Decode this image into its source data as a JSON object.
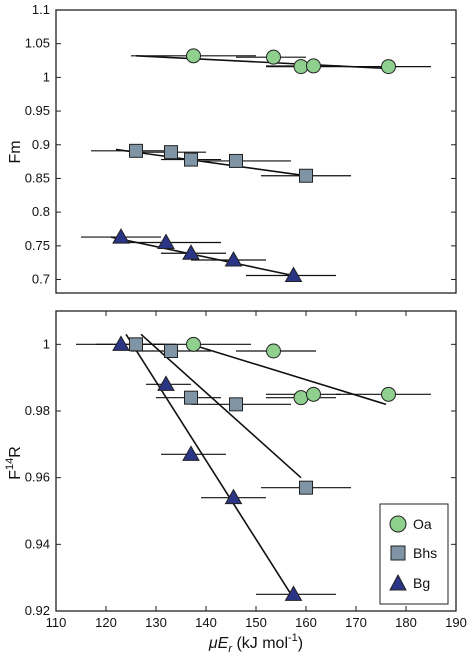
{
  "chart_data": [
    {
      "type": "scatter",
      "panel": "top",
      "ylabel": "Fm",
      "xlim": [
        110,
        190
      ],
      "ylim": [
        0.68,
        1.1
      ],
      "yticks": [
        "0.7",
        "0.75",
        "0.8",
        "0.85",
        "0.9",
        "0.95",
        "1",
        "1.05",
        "1.1"
      ],
      "grid": false,
      "series": [
        {
          "key": "Oa",
          "marker": "circle",
          "color": "#8fd08f",
          "points": [
            {
              "x": 137.5,
              "y": 1.032,
              "xerr_lo": 125,
              "xerr_hi": 150
            },
            {
              "x": 153.5,
              "y": 1.03,
              "xerr_lo": 146,
              "xerr_hi": 160
            },
            {
              "x": 159.0,
              "y": 1.016,
              "xerr_lo": 152,
              "xerr_hi": 166
            },
            {
              "x": 161.5,
              "y": 1.017,
              "xerr_lo": 152,
              "xerr_hi": 167
            },
            {
              "x": 176.5,
              "y": 1.016,
              "xerr_lo": 166,
              "xerr_hi": 185
            }
          ],
          "fit": [
            [
              126,
              1.032
            ],
            [
              177,
              1.013
            ]
          ]
        },
        {
          "key": "Bhs",
          "marker": "square",
          "color": "#7f95a6",
          "points": [
            {
              "x": 126.0,
              "y": 0.891,
              "xerr_lo": 117,
              "xerr_hi": 134
            },
            {
              "x": 133.0,
              "y": 0.889,
              "xerr_lo": 125,
              "xerr_hi": 140
            },
            {
              "x": 137.0,
              "y": 0.878,
              "xerr_lo": 131,
              "xerr_hi": 143
            },
            {
              "x": 146.0,
              "y": 0.876,
              "xerr_lo": 136,
              "xerr_hi": 157
            },
            {
              "x": 160.0,
              "y": 0.854,
              "xerr_lo": 151,
              "xerr_hi": 169
            }
          ],
          "fit": [
            [
              122,
              0.893
            ],
            [
              161,
              0.853
            ]
          ]
        },
        {
          "key": "Bg",
          "marker": "triangle",
          "color": "#2a3585",
          "points": [
            {
              "x": 123.0,
              "y": 0.763,
              "xerr_lo": 115,
              "xerr_hi": 131
            },
            {
              "x": 132.0,
              "y": 0.755,
              "xerr_lo": 122,
              "xerr_hi": 143
            },
            {
              "x": 137.0,
              "y": 0.739,
              "xerr_lo": 131,
              "xerr_hi": 144
            },
            {
              "x": 145.5,
              "y": 0.729,
              "xerr_lo": 137,
              "xerr_hi": 152
            },
            {
              "x": 157.5,
              "y": 0.706,
              "xerr_lo": 148,
              "xerr_hi": 166
            }
          ],
          "fit": [
            [
              121,
              0.763
            ],
            [
              158,
              0.705
            ]
          ]
        }
      ]
    },
    {
      "type": "scatter",
      "panel": "bottom",
      "ylabel": "F",
      "ylabel_sup": "14",
      "ylabel_tail": "R",
      "xlabel_mu": "μ",
      "xlabel_E": "E",
      "xlabel_sub": "r",
      "xlabel_tail": " (kJ mol",
      "xlabel_sup": "-1",
      "xlabel_end": ")",
      "xlim": [
        110,
        190
      ],
      "ylim": [
        0.92,
        1.01
      ],
      "xticks": [
        "110",
        "120",
        "130",
        "140",
        "150",
        "160",
        "170",
        "180",
        "190"
      ],
      "yticks": [
        "0.92",
        "0.94",
        "0.96",
        "0.98",
        "1"
      ],
      "grid": false,
      "legend": {
        "position": "bottom-right",
        "entries": [
          "Oa",
          "Bhs",
          "Bg"
        ]
      },
      "series": [
        {
          "key": "Oa",
          "marker": "circle",
          "color": "#8fd08f",
          "points": [
            {
              "x": 137.5,
              "y": 1.0,
              "xerr_lo": 126,
              "xerr_hi": 149
            },
            {
              "x": 153.5,
              "y": 0.998,
              "xerr_lo": 146,
              "xerr_hi": 162
            },
            {
              "x": 159.0,
              "y": 0.984,
              "xerr_lo": 152,
              "xerr_hi": 166
            },
            {
              "x": 161.5,
              "y": 0.985,
              "xerr_lo": 152,
              "xerr_hi": 167
            },
            {
              "x": 176.5,
              "y": 0.985,
              "xerr_lo": 166,
              "xerr_hi": 185
            }
          ],
          "fit": [
            [
              137,
              1.0
            ],
            [
              176,
              0.982
            ]
          ]
        },
        {
          "key": "Bhs",
          "marker": "square",
          "color": "#7f95a6",
          "points": [
            {
              "x": 126.0,
              "y": 1.0,
              "xerr_lo": 118,
              "xerr_hi": 134
            },
            {
              "x": 133.0,
              "y": 0.998,
              "xerr_lo": 125,
              "xerr_hi": 141
            },
            {
              "x": 137.0,
              "y": 0.984,
              "xerr_lo": 130,
              "xerr_hi": 143
            },
            {
              "x": 146.0,
              "y": 0.982,
              "xerr_lo": 137,
              "xerr_hi": 157
            },
            {
              "x": 160.0,
              "y": 0.957,
              "xerr_lo": 151,
              "xerr_hi": 169
            }
          ],
          "fit": [
            [
              127,
              1.003
            ],
            [
              159,
              0.96
            ]
          ]
        },
        {
          "key": "Bg",
          "marker": "triangle",
          "color": "#2a3585",
          "points": [
            {
              "x": 123.0,
              "y": 1.0,
              "xerr_lo": 114,
              "xerr_hi": 132
            },
            {
              "x": 132.0,
              "y": 0.988,
              "xerr_lo": 128,
              "xerr_hi": 137
            },
            {
              "x": 137.0,
              "y": 0.967,
              "xerr_lo": 131,
              "xerr_hi": 144
            },
            {
              "x": 145.5,
              "y": 0.954,
              "xerr_lo": 139,
              "xerr_hi": 152
            },
            {
              "x": 157.5,
              "y": 0.925,
              "xerr_lo": 150,
              "xerr_hi": 166
            }
          ],
          "fit": [
            [
              124,
              1.003
            ],
            [
              157,
              0.925
            ]
          ]
        }
      ]
    }
  ]
}
